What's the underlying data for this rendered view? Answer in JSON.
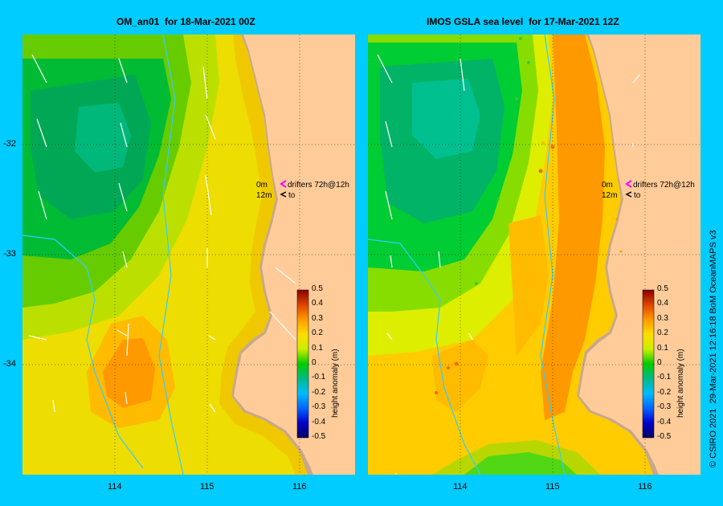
{
  "panels": [
    {
      "title": "OM_an01  for 18-Mar-2021 00Z"
    },
    {
      "title": "IMOS GSLA sea level  for 17-Mar-2021 12Z"
    }
  ],
  "axes": {
    "lat_ticks": [
      "-32",
      "-33",
      "-34"
    ],
    "lon_ticks": [
      "114",
      "115",
      "116"
    ]
  },
  "legend": {
    "row1_depth": "0m",
    "row1_text": "drifters 72h@12h",
    "row2_depth": "12m",
    "row2_text": "to",
    "row1_color": "#ff00ff",
    "row2_color": "#000000"
  },
  "colorbar": {
    "label": "height anomaly (m)",
    "ticks": [
      "0.5",
      "0.4",
      "0.3",
      "0.2",
      "0.1",
      "0",
      "-0.1",
      "-0.2",
      "-0.3",
      "-0.4",
      "-0.5"
    ],
    "colors": [
      "#000066",
      "#0000cc",
      "#0066ff",
      "#00bbff",
      "#00ccaa",
      "#00bb55",
      "#00cc00",
      "#88dd00",
      "#ddee00",
      "#ffdd00",
      "#ffbb00",
      "#ff9900",
      "#ee6600",
      "#cc3300",
      "#880000"
    ]
  },
  "credit": "© CSIRO 2021  29-Mar-2021 12:16:18 BoM OceanMAPS v3",
  "colors": {
    "land": "#ffcc99",
    "coast_shelf": "#c8a88a",
    "background": "#00ccff"
  }
}
